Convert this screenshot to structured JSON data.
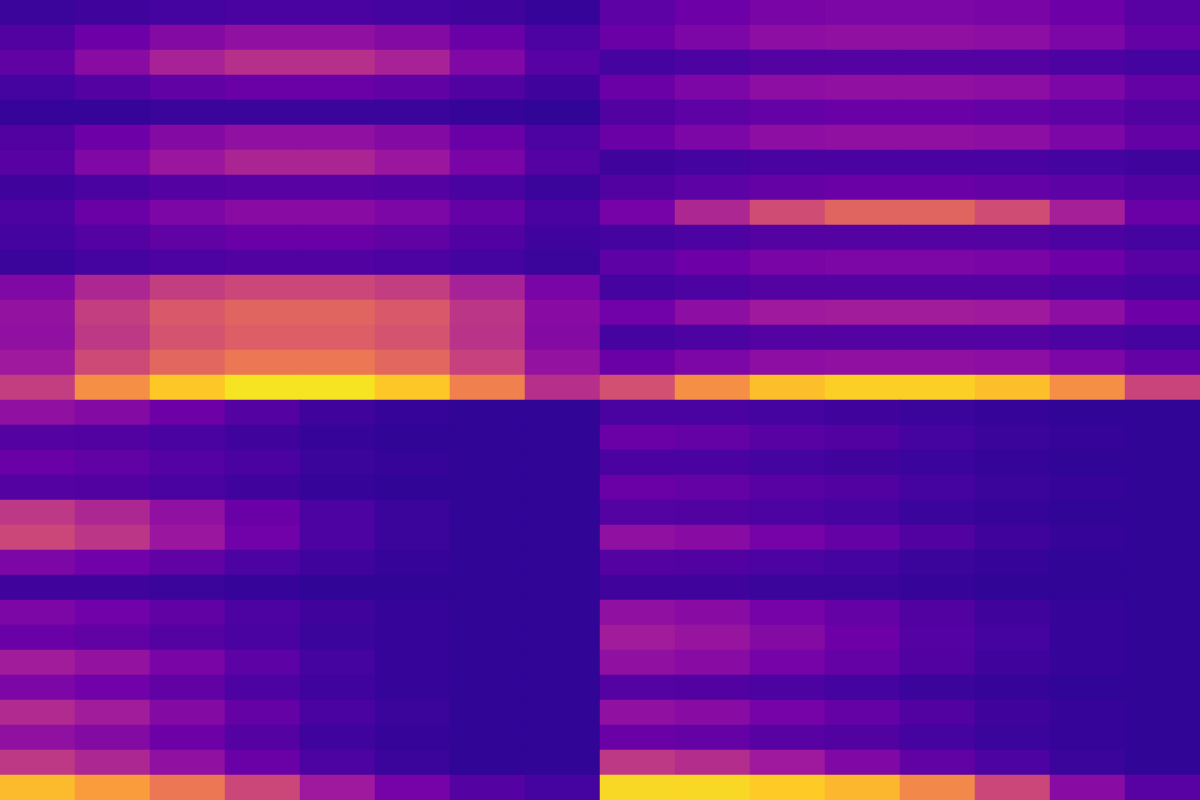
{
  "chart_data": [
    {
      "type": "heatmap",
      "color_range": [
        0,
        1
      ],
      "tick_labels": false,
      "cells": [
        [
          0.09,
          0.1,
          0.11,
          0.12,
          0.12,
          0.11,
          0.1,
          0.08
        ],
        [
          0.14,
          0.21,
          0.27,
          0.3,
          0.3,
          0.27,
          0.2,
          0.13
        ],
        [
          0.18,
          0.28,
          0.37,
          0.42,
          0.42,
          0.37,
          0.26,
          0.16
        ],
        [
          0.11,
          0.15,
          0.18,
          0.2,
          0.2,
          0.18,
          0.14,
          0.1
        ],
        [
          0.08,
          0.08,
          0.09,
          0.09,
          0.09,
          0.09,
          0.08,
          0.07
        ],
        [
          0.14,
          0.21,
          0.27,
          0.3,
          0.3,
          0.27,
          0.2,
          0.13
        ],
        [
          0.16,
          0.26,
          0.33,
          0.38,
          0.38,
          0.33,
          0.24,
          0.15
        ],
        [
          0.1,
          0.12,
          0.15,
          0.16,
          0.16,
          0.15,
          0.12,
          0.09
        ],
        [
          0.13,
          0.2,
          0.25,
          0.28,
          0.28,
          0.25,
          0.19,
          0.12
        ],
        [
          0.11,
          0.15,
          0.18,
          0.2,
          0.2,
          0.18,
          0.14,
          0.1
        ],
        [
          0.09,
          0.11,
          0.13,
          0.14,
          0.14,
          0.13,
          0.11,
          0.09
        ],
        [
          0.26,
          0.39,
          0.47,
          0.5,
          0.5,
          0.47,
          0.37,
          0.24
        ],
        [
          0.31,
          0.47,
          0.56,
          0.6,
          0.6,
          0.56,
          0.44,
          0.28
        ],
        [
          0.3,
          0.45,
          0.54,
          0.58,
          0.58,
          0.54,
          0.43,
          0.27
        ],
        [
          0.34,
          0.51,
          0.61,
          0.66,
          0.66,
          0.61,
          0.48,
          0.31
        ],
        [
          0.47,
          0.73,
          0.88,
          0.95,
          0.95,
          0.88,
          0.69,
          0.42
        ]
      ]
    },
    {
      "type": "heatmap",
      "color_range": [
        0,
        1
      ],
      "tick_labels": false,
      "cells": [
        [
          0.17,
          0.21,
          0.24,
          0.25,
          0.25,
          0.24,
          0.21,
          0.16
        ],
        [
          0.2,
          0.25,
          0.29,
          0.3,
          0.3,
          0.29,
          0.25,
          0.19
        ],
        [
          0.11,
          0.13,
          0.15,
          0.15,
          0.15,
          0.15,
          0.13,
          0.11
        ],
        [
          0.2,
          0.25,
          0.29,
          0.3,
          0.3,
          0.29,
          0.25,
          0.19
        ],
        [
          0.14,
          0.17,
          0.19,
          0.2,
          0.2,
          0.19,
          0.17,
          0.14
        ],
        [
          0.2,
          0.25,
          0.29,
          0.3,
          0.3,
          0.29,
          0.25,
          0.19
        ],
        [
          0.1,
          0.11,
          0.12,
          0.12,
          0.12,
          0.12,
          0.11,
          0.1
        ],
        [
          0.14,
          0.17,
          0.19,
          0.2,
          0.2,
          0.19,
          0.17,
          0.14
        ],
        [
          0.23,
          0.39,
          0.52,
          0.6,
          0.6,
          0.52,
          0.36,
          0.2
        ],
        [
          0.11,
          0.13,
          0.15,
          0.15,
          0.15,
          0.15,
          0.13,
          0.11
        ],
        [
          0.17,
          0.21,
          0.24,
          0.25,
          0.25,
          0.24,
          0.21,
          0.16
        ],
        [
          0.11,
          0.13,
          0.15,
          0.15,
          0.15,
          0.15,
          0.13,
          0.11
        ],
        [
          0.22,
          0.29,
          0.34,
          0.35,
          0.35,
          0.34,
          0.29,
          0.21
        ],
        [
          0.11,
          0.13,
          0.15,
          0.15,
          0.15,
          0.15,
          0.13,
          0.11
        ],
        [
          0.2,
          0.25,
          0.29,
          0.3,
          0.3,
          0.29,
          0.25,
          0.19
        ],
        [
          0.53,
          0.73,
          0.86,
          0.9,
          0.9,
          0.86,
          0.73,
          0.49
        ]
      ]
    },
    {
      "type": "heatmap",
      "color_range": [
        0,
        1
      ],
      "tick_labels": false,
      "cells": [
        [
          0.3,
          0.27,
          0.21,
          0.15,
          0.1,
          0.08,
          0.07,
          0.07
        ],
        [
          0.15,
          0.14,
          0.12,
          0.1,
          0.08,
          0.07,
          0.07,
          0.07
        ],
        [
          0.2,
          0.18,
          0.15,
          0.12,
          0.09,
          0.08,
          0.07,
          0.07
        ],
        [
          0.15,
          0.14,
          0.12,
          0.1,
          0.08,
          0.07,
          0.07,
          0.07
        ],
        [
          0.45,
          0.39,
          0.3,
          0.2,
          0.13,
          0.09,
          0.07,
          0.07
        ],
        [
          0.5,
          0.44,
          0.33,
          0.22,
          0.13,
          0.09,
          0.07,
          0.07
        ],
        [
          0.25,
          0.22,
          0.18,
          0.13,
          0.1,
          0.08,
          0.07,
          0.07
        ],
        [
          0.1,
          0.1,
          0.09,
          0.08,
          0.07,
          0.07,
          0.07,
          0.07
        ],
        [
          0.25,
          0.22,
          0.18,
          0.13,
          0.1,
          0.08,
          0.07,
          0.07
        ],
        [
          0.2,
          0.18,
          0.15,
          0.12,
          0.09,
          0.08,
          0.07,
          0.07
        ],
        [
          0.35,
          0.31,
          0.24,
          0.17,
          0.11,
          0.08,
          0.07,
          0.07
        ],
        [
          0.25,
          0.22,
          0.18,
          0.13,
          0.1,
          0.08,
          0.07,
          0.07
        ],
        [
          0.4,
          0.35,
          0.27,
          0.19,
          0.12,
          0.09,
          0.07,
          0.07
        ],
        [
          0.3,
          0.27,
          0.21,
          0.15,
          0.1,
          0.08,
          0.07,
          0.07
        ],
        [
          0.45,
          0.39,
          0.3,
          0.2,
          0.13,
          0.09,
          0.07,
          0.07
        ],
        [
          0.85,
          0.77,
          0.66,
          0.5,
          0.34,
          0.23,
          0.15,
          0.11
        ]
      ]
    },
    {
      "type": "heatmap",
      "color_range": [
        0,
        1
      ],
      "tick_labels": false,
      "cells": [
        [
          0.12,
          0.12,
          0.11,
          0.1,
          0.09,
          0.08,
          0.07,
          0.07
        ],
        [
          0.2,
          0.19,
          0.16,
          0.14,
          0.11,
          0.09,
          0.08,
          0.07
        ],
        [
          0.12,
          0.12,
          0.11,
          0.1,
          0.09,
          0.08,
          0.07,
          0.07
        ],
        [
          0.2,
          0.19,
          0.16,
          0.14,
          0.11,
          0.09,
          0.08,
          0.07
        ],
        [
          0.15,
          0.14,
          0.13,
          0.11,
          0.09,
          0.08,
          0.07,
          0.07
        ],
        [
          0.3,
          0.28,
          0.23,
          0.19,
          0.14,
          0.1,
          0.08,
          0.07
        ],
        [
          0.15,
          0.14,
          0.13,
          0.11,
          0.09,
          0.08,
          0.07,
          0.07
        ],
        [
          0.1,
          0.1,
          0.09,
          0.09,
          0.08,
          0.07,
          0.07,
          0.07
        ],
        [
          0.3,
          0.28,
          0.23,
          0.19,
          0.14,
          0.1,
          0.08,
          0.07
        ],
        [
          0.35,
          0.32,
          0.27,
          0.21,
          0.15,
          0.11,
          0.08,
          0.07
        ],
        [
          0.3,
          0.28,
          0.23,
          0.19,
          0.14,
          0.1,
          0.08,
          0.07
        ],
        [
          0.15,
          0.14,
          0.13,
          0.11,
          0.09,
          0.08,
          0.07,
          0.07
        ],
        [
          0.3,
          0.28,
          0.23,
          0.19,
          0.14,
          0.1,
          0.08,
          0.07
        ],
        [
          0.2,
          0.19,
          0.16,
          0.14,
          0.11,
          0.09,
          0.08,
          0.07
        ],
        [
          0.45,
          0.41,
          0.34,
          0.26,
          0.18,
          0.13,
          0.09,
          0.07
        ],
        [
          0.92,
          0.92,
          0.89,
          0.84,
          0.71,
          0.5,
          0.28,
          0.16
        ]
      ]
    }
  ]
}
